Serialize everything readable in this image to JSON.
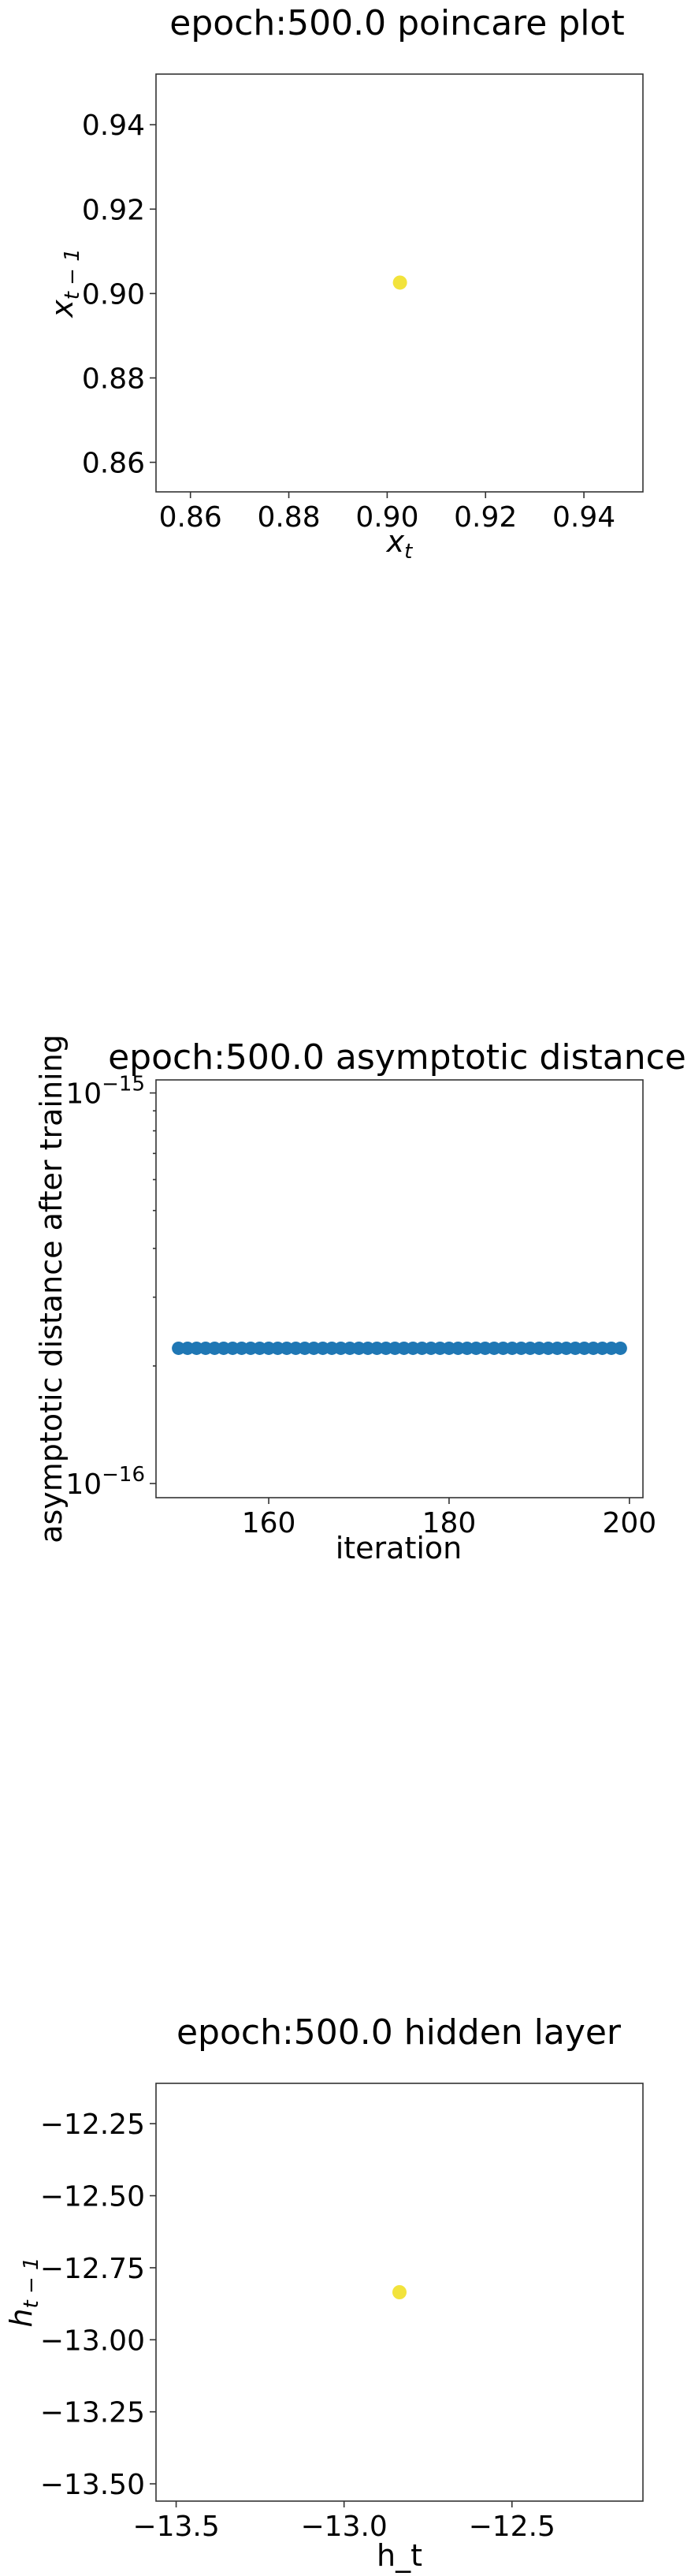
{
  "chart_data": [
    {
      "type": "scatter",
      "title": "epoch:500.0 poincare plot",
      "xlabel_main": "x",
      "xlabel_sub": "t",
      "ylabel_main": "x",
      "ylabel_sub": "t − 1",
      "xlim": [
        0.853,
        0.952
      ],
      "ylim": [
        0.853,
        0.952
      ],
      "xticks": [
        0.86,
        0.88,
        0.9,
        0.92,
        0.94
      ],
      "xtick_labels": [
        "0.86",
        "0.88",
        "0.90",
        "0.92",
        "0.94"
      ],
      "yticks": [
        0.86,
        0.88,
        0.9,
        0.92,
        0.94
      ],
      "ytick_labels": [
        "0.86",
        "0.88",
        "0.90",
        "0.92",
        "0.94"
      ],
      "points": [
        {
          "x": 0.9026,
          "y": 0.9026
        }
      ],
      "point_color": "#f2e33c",
      "grid": false
    },
    {
      "type": "scatter",
      "title": "epoch:500.0 asymptotic distance",
      "xlabel": "iteration",
      "ylabel": "asymptotic distance after training",
      "yscale": "log",
      "xlim": [
        147.5,
        201.5
      ],
      "ylim": [
        9.2e-17,
        1.08e-15
      ],
      "xticks": [
        160,
        180,
        200
      ],
      "xtick_labels": [
        "160",
        "180",
        "200"
      ],
      "yticks": [
        1e-16,
        1e-15
      ],
      "ytick_labels": [
        {
          "base": "10",
          "exp": "−16"
        },
        {
          "base": "10",
          "exp": "−15"
        }
      ],
      "series": [
        {
          "x": [
            150,
            151,
            152,
            153,
            154,
            155,
            156,
            157,
            158,
            159,
            160,
            161,
            162,
            163,
            164,
            165,
            166,
            167,
            168,
            169,
            170,
            171,
            172,
            173,
            174,
            175,
            176,
            177,
            178,
            179,
            180,
            181,
            182,
            183,
            184,
            185,
            186,
            187,
            188,
            189,
            190,
            191,
            192,
            193,
            194,
            195,
            196,
            197,
            198,
            199
          ],
          "values": [
            2.22e-16,
            2.22e-16,
            2.22e-16,
            2.22e-16,
            2.22e-16,
            2.22e-16,
            2.22e-16,
            2.22e-16,
            2.22e-16,
            2.22e-16,
            2.22e-16,
            2.22e-16,
            2.22e-16,
            2.22e-16,
            2.22e-16,
            2.22e-16,
            2.22e-16,
            2.22e-16,
            2.22e-16,
            2.22e-16,
            2.22e-16,
            2.22e-16,
            2.22e-16,
            2.22e-16,
            2.22e-16,
            2.22e-16,
            2.22e-16,
            2.22e-16,
            2.22e-16,
            2.22e-16,
            2.22e-16,
            2.22e-16,
            2.22e-16,
            2.22e-16,
            2.22e-16,
            2.22e-16,
            2.22e-16,
            2.22e-16,
            2.22e-16,
            2.22e-16,
            2.22e-16,
            2.22e-16,
            2.22e-16,
            2.22e-16,
            2.22e-16,
            2.22e-16,
            2.22e-16,
            2.22e-16,
            2.22e-16,
            2.22e-16
          ]
        }
      ],
      "point_color": "#1f77b4",
      "grid": false
    },
    {
      "type": "scatter",
      "title": "epoch:500.0 hidden layer",
      "xlabel": "h_t",
      "ylabel_main": "h",
      "ylabel_sub": "t − 1",
      "xlim": [
        -13.56,
        -12.11
      ],
      "ylim": [
        -13.56,
        -12.11
      ],
      "xticks": [
        -13.5,
        -13.0,
        -12.5
      ],
      "xtick_labels": [
        "−13.5",
        "−13.0",
        "−12.5"
      ],
      "yticks": [
        -13.5,
        -13.25,
        -13.0,
        -12.75,
        -12.5,
        -12.25
      ],
      "ytick_labels": [
        "−13.50",
        "−13.25",
        "−13.00",
        "−12.75",
        "−12.50",
        "−12.25"
      ],
      "points": [
        {
          "x": -12.835,
          "y": -12.835
        }
      ],
      "point_color": "#f2e33c",
      "grid": false
    }
  ]
}
